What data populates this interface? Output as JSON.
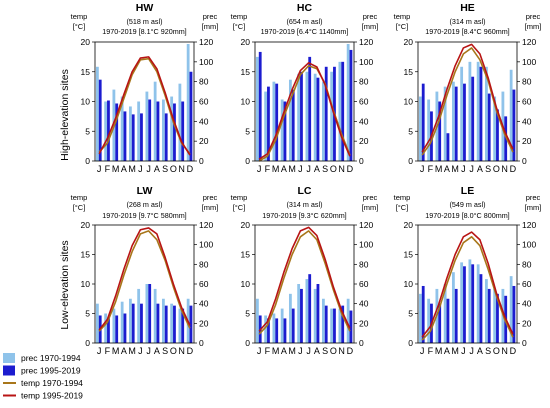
{
  "figure": {
    "row_labels": [
      "High-elevation sites",
      "Low-elevation sites"
    ],
    "legend": [
      {
        "label": "prec  1970-1994",
        "kind": "bar",
        "color": "#8fc3ea"
      },
      {
        "label": "prec  1995-2019",
        "kind": "bar",
        "color": "#1c1ccf"
      },
      {
        "label": "temp 1970-1994",
        "kind": "line",
        "color": "#a8761a"
      },
      {
        "label": "temp 1995-2019",
        "kind": "line",
        "color": "#b81414"
      }
    ]
  },
  "chart_data": [
    {
      "type": "bar",
      "title": "HW",
      "elevation": "(518 m asl)",
      "subtitle": "1970-2019 [8.1°C 920mm]",
      "yleft_label": [
        "temp",
        "[°C]"
      ],
      "yright_label": [
        "prec",
        "[mm]"
      ],
      "categories": [
        "J",
        "F",
        "M",
        "A",
        "M",
        "J",
        "J",
        "A",
        "S",
        "O",
        "N",
        "D"
      ],
      "ylim_left": [
        0,
        20
      ],
      "ylim_right": [
        0,
        120
      ],
      "yticks_left": [
        0,
        5,
        10,
        15,
        20
      ],
      "yticks_right": [
        0,
        20,
        40,
        60,
        80,
        100,
        120
      ],
      "series": [
        {
          "name": "prec 1970-1994",
          "kind": "bar",
          "values": [
            95,
            60,
            72,
            65,
            55,
            60,
            70,
            80,
            62,
            65,
            78,
            118
          ]
        },
        {
          "name": "prec 1995-2019",
          "kind": "bar",
          "values": [
            82,
            61,
            58,
            50,
            47,
            48,
            62,
            60,
            48,
            58,
            60,
            90
          ]
        },
        {
          "name": "temp 1970-1994",
          "kind": "line",
          "values": [
            1.5,
            3.0,
            6.5,
            10.5,
            14.5,
            17.0,
            17.2,
            15.0,
            11.0,
            6.5,
            3.0,
            1.2
          ]
        },
        {
          "name": "temp 1995-2019",
          "kind": "line",
          "values": [
            1.2,
            3.8,
            7.2,
            11.2,
            15.0,
            17.3,
            17.5,
            15.5,
            11.5,
            7.0,
            3.2,
            1.0
          ]
        }
      ]
    },
    {
      "type": "bar",
      "title": "HC",
      "elevation": "(654 m asl)",
      "subtitle": "1970-2019 [6.4°C 1140mm]",
      "yleft_label": [
        "temp",
        "[°C]"
      ],
      "yright_label": [
        "prec",
        "[mm]"
      ],
      "categories": [
        "J",
        "F",
        "M",
        "A",
        "M",
        "J",
        "J",
        "A",
        "S",
        "O",
        "N",
        "D"
      ],
      "ylim_left": [
        0,
        20
      ],
      "ylim_right": [
        0,
        120
      ],
      "yticks_left": [
        0,
        5,
        10,
        15,
        20
      ],
      "yticks_right": [
        0,
        20,
        40,
        60,
        80,
        100,
        120
      ],
      "series": [
        {
          "name": "prec 1970-1994",
          "kind": "bar",
          "values": [
            105,
            70,
            80,
            62,
            82,
            88,
            90,
            88,
            80,
            90,
            100,
            118
          ]
        },
        {
          "name": "prec 1995-2019",
          "kind": "bar",
          "values": [
            110,
            75,
            78,
            60,
            72,
            90,
            105,
            84,
            95,
            95,
            100,
            112
          ]
        },
        {
          "name": "temp 1970-1994",
          "kind": "line",
          "values": [
            0.0,
            0.8,
            3.5,
            7.5,
            11.0,
            14.5,
            16.0,
            15.5,
            13.0,
            8.5,
            4.5,
            1.0
          ]
        },
        {
          "name": "temp 1995-2019",
          "kind": "line",
          "values": [
            0.3,
            1.2,
            4.2,
            8.2,
            12.0,
            15.2,
            16.5,
            15.8,
            12.8,
            8.2,
            4.0,
            0.8
          ]
        }
      ]
    },
    {
      "type": "bar",
      "title": "HE",
      "elevation": "(314 m asl)",
      "subtitle": "1970-2019 [8.4°C 960mm]",
      "yleft_label": [
        "temp",
        "[°C]"
      ],
      "yright_label": [
        "prec",
        "[mm]"
      ],
      "categories": [
        "J",
        "F",
        "M",
        "A",
        "M",
        "J",
        "J",
        "A",
        "S",
        "O",
        "N",
        "D"
      ],
      "ylim_left": [
        0,
        20
      ],
      "ylim_right": [
        0,
        120
      ],
      "yticks_left": [
        0,
        5,
        10,
        15,
        20
      ],
      "yticks_right": [
        0,
        20,
        40,
        60,
        80,
        100,
        120
      ],
      "series": [
        {
          "name": "prec 1970-1994",
          "kind": "bar",
          "values": [
            65,
            62,
            70,
            75,
            80,
            95,
            100,
            100,
            95,
            65,
            70,
            92
          ]
        },
        {
          "name": "prec 1995-2019",
          "kind": "bar",
          "values": [
            78,
            50,
            60,
            28,
            75,
            78,
            85,
            95,
            68,
            52,
            45,
            72
          ]
        },
        {
          "name": "temp 1970-1994",
          "kind": "line",
          "values": [
            1.0,
            3.0,
            6.5,
            11.0,
            15.0,
            18.0,
            19.0,
            17.0,
            13.5,
            8.5,
            4.5,
            1.5
          ]
        },
        {
          "name": "temp 1995-2019",
          "kind": "line",
          "values": [
            1.5,
            3.8,
            7.5,
            12.0,
            16.0,
            19.0,
            19.6,
            18.0,
            14.0,
            9.0,
            5.0,
            2.0
          ]
        }
      ]
    },
    {
      "type": "bar",
      "title": "LW",
      "elevation": "(268 m asl)",
      "subtitle": "1970-2019 [9.7°C 580mm]",
      "yleft_label": [
        "temp",
        "[°C]"
      ],
      "yright_label": [
        "prec",
        "[mm]"
      ],
      "categories": [
        "J",
        "F",
        "M",
        "A",
        "M",
        "J",
        "J",
        "A",
        "S",
        "O",
        "N",
        "D"
      ],
      "ylim_left": [
        0,
        20
      ],
      "ylim_right": [
        0,
        120
      ],
      "yticks_left": [
        0,
        5,
        10,
        15,
        20
      ],
      "yticks_right": [
        0,
        20,
        40,
        60,
        80,
        100,
        120
      ],
      "series": [
        {
          "name": "prec 1970-1994",
          "kind": "bar",
          "values": [
            40,
            30,
            35,
            42,
            45,
            55,
            60,
            55,
            45,
            40,
            35,
            45
          ]
        },
        {
          "name": "prec 1995-2019",
          "kind": "bar",
          "values": [
            28,
            25,
            28,
            30,
            40,
            40,
            60,
            40,
            38,
            38,
            35,
            38
          ]
        },
        {
          "name": "temp 1970-1994",
          "kind": "line",
          "values": [
            2.0,
            3.5,
            7.0,
            11.5,
            15.5,
            18.5,
            19.0,
            17.5,
            14.0,
            9.5,
            5.5,
            2.5
          ]
        },
        {
          "name": "temp 1995-2019",
          "kind": "line",
          "values": [
            2.2,
            4.0,
            8.0,
            12.5,
            16.5,
            19.2,
            19.5,
            18.5,
            14.5,
            10.0,
            6.0,
            3.0
          ]
        }
      ]
    },
    {
      "type": "bar",
      "title": "LC",
      "elevation": "(314 m asl)",
      "subtitle": "1970-2019 [9.3°C 620mm]",
      "yleft_label": [
        "temp",
        "[°C]"
      ],
      "yright_label": [
        "prec",
        "[mm]"
      ],
      "categories": [
        "J",
        "F",
        "M",
        "A",
        "M",
        "J",
        "J",
        "A",
        "S",
        "O",
        "N",
        "D"
      ],
      "ylim_left": [
        0,
        20
      ],
      "ylim_right": [
        0,
        120
      ],
      "yticks_left": [
        0,
        5,
        10,
        15,
        20
      ],
      "yticks_right": [
        0,
        20,
        40,
        60,
        80,
        100,
        120
      ],
      "series": [
        {
          "name": "prec 1970-1994",
          "kind": "bar",
          "values": [
            45,
            28,
            30,
            35,
            50,
            60,
            65,
            55,
            45,
            35,
            35,
            45
          ]
        },
        {
          "name": "prec 1995-2019",
          "kind": "bar",
          "values": [
            28,
            25,
            25,
            25,
            35,
            55,
            70,
            60,
            38,
            35,
            38,
            33
          ]
        },
        {
          "name": "temp 1970-1994",
          "kind": "line",
          "values": [
            1.5,
            3.0,
            6.5,
            11.0,
            15.0,
            18.0,
            19.0,
            17.5,
            13.5,
            9.0,
            5.0,
            2.0
          ]
        },
        {
          "name": "temp 1995-2019",
          "kind": "line",
          "values": [
            2.0,
            3.6,
            7.5,
            12.0,
            16.0,
            19.0,
            19.6,
            18.2,
            14.2,
            9.5,
            5.5,
            2.5
          ]
        }
      ]
    },
    {
      "type": "bar",
      "title": "LE",
      "elevation": "(549 m asl)",
      "subtitle": "1970-2019 [8.0°C 800mm]",
      "yleft_label": [
        "temp",
        "[°C]"
      ],
      "yright_label": [
        "prec",
        "[mm]"
      ],
      "categories": [
        "J",
        "F",
        "M",
        "A",
        "M",
        "J",
        "J",
        "A",
        "S",
        "O",
        "N",
        "D"
      ],
      "ylim_left": [
        0,
        20
      ],
      "ylim_right": [
        0,
        120
      ],
      "yticks_left": [
        0,
        5,
        10,
        15,
        20
      ],
      "yticks_right": [
        0,
        20,
        40,
        60,
        80,
        100,
        120
      ],
      "series": [
        {
          "name": "prec 1970-1994",
          "kind": "bar",
          "values": [
            50,
            45,
            55,
            60,
            72,
            82,
            85,
            80,
            65,
            55,
            55,
            68
          ]
        },
        {
          "name": "prec 1995-2019",
          "kind": "bar",
          "values": [
            58,
            40,
            40,
            45,
            55,
            78,
            80,
            70,
            55,
            50,
            48,
            58
          ]
        },
        {
          "name": "temp 1970-1994",
          "kind": "line",
          "values": [
            0.5,
            2.0,
            5.5,
            10.0,
            14.0,
            17.0,
            18.0,
            16.5,
            12.5,
            8.0,
            4.0,
            1.0
          ]
        },
        {
          "name": "temp 1995-2019",
          "kind": "line",
          "values": [
            1.0,
            2.8,
            6.5,
            11.0,
            15.0,
            18.0,
            18.8,
            17.5,
            13.5,
            8.5,
            4.5,
            1.5
          ]
        }
      ]
    }
  ]
}
